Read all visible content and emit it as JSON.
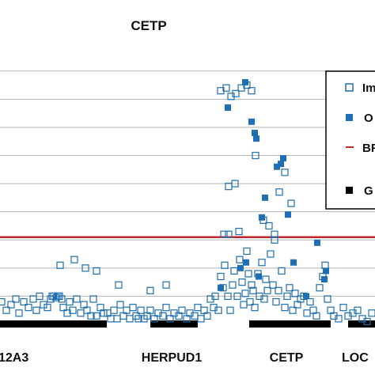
{
  "chart_data": {
    "type": "scatter",
    "title": "CETP",
    "xlabel": "",
    "ylabel": "",
    "ylim": [
      0,
      9.5
    ],
    "gridlines": [
      1,
      2,
      3,
      4,
      5,
      6,
      7,
      8,
      9
    ],
    "threshold": 3.1,
    "gene_labels": [
      "12A3",
      "HERPUD1",
      "CETP",
      "LOC"
    ],
    "gene_bars": [
      [
        0,
        135
      ],
      [
        190,
        250
      ],
      [
        315,
        418
      ],
      [
        440,
        474
      ]
    ],
    "legend": [
      "Im",
      "O",
      "BF",
      "G"
    ],
    "colors": {
      "marker": "#1e6fb4",
      "threshold": "#c1272d",
      "grid": "#b4b4b4",
      "gene": "#000000"
    },
    "series": [
      {
        "name": "Im",
        "marker": "open-square",
        "points": [
          [
            2,
            0.8
          ],
          [
            8,
            0.5
          ],
          [
            14,
            0.7
          ],
          [
            20,
            0.9
          ],
          [
            24,
            0.4
          ],
          [
            30,
            0.8
          ],
          [
            36,
            0.6
          ],
          [
            42,
            0.9
          ],
          [
            46,
            0.5
          ],
          [
            50,
            1.0
          ],
          [
            55,
            0.7
          ],
          [
            60,
            0.6
          ],
          [
            64,
            0.9
          ],
          [
            66,
            1.0
          ],
          [
            68,
            1.0
          ],
          [
            71,
            0.95
          ],
          [
            73,
            1.0
          ],
          [
            75,
            1.0
          ],
          [
            78,
            0.9
          ],
          [
            80,
            0.6
          ],
          [
            85,
            0.4
          ],
          [
            88,
            0.8
          ],
          [
            92,
            0.5
          ],
          [
            97,
            0.9
          ],
          [
            102,
            0.4
          ],
          [
            106,
            0.7
          ],
          [
            110,
            0.5
          ],
          [
            115,
            0.3
          ],
          [
            118,
            0.9
          ],
          [
            122,
            0.3
          ],
          [
            127,
            0.6
          ],
          [
            131,
            0.4
          ],
          [
            136,
            0.4
          ],
          [
            140,
            0.2
          ],
          [
            144,
            0.5
          ],
          [
            148,
            0.2
          ],
          [
            152,
            0.7
          ],
          [
            156,
            0.3
          ],
          [
            160,
            0.5
          ],
          [
            164,
            0.2
          ],
          [
            168,
            0.6
          ],
          [
            172,
            0.3
          ],
          [
            175,
            0.2
          ],
          [
            178,
            0.5
          ],
          [
            182,
            0.2
          ],
          [
            186,
            0.3
          ],
          [
            190,
            0.5
          ],
          [
            195,
            0.2
          ],
          [
            200,
            0.4
          ],
          [
            206,
            0.3
          ],
          [
            210,
            0.6
          ],
          [
            215,
            0.2
          ],
          [
            220,
            0.4
          ],
          [
            226,
            0.3
          ],
          [
            230,
            0.5
          ],
          [
            236,
            0.2
          ],
          [
            240,
            0.4
          ],
          [
            246,
            0.3
          ],
          [
            250,
            0.6
          ],
          [
            254,
            0.2
          ],
          [
            258,
            0.5
          ],
          [
            262,
            0.3
          ],
          [
            266,
            0.9
          ],
          [
            270,
            0.6
          ],
          [
            272,
            1.0
          ],
          [
            276,
            0.5
          ],
          [
            279,
            1.7
          ],
          [
            282,
            1.3
          ],
          [
            284,
            2.1
          ],
          [
            288,
            1.0
          ],
          [
            291,
            0.5
          ],
          [
            294,
            1.4
          ],
          [
            296,
            1.9
          ],
          [
            300,
            1.0
          ],
          [
            303,
            2.3
          ],
          [
            306,
            1.5
          ],
          [
            308,
            0.7
          ],
          [
            310,
            1.1
          ],
          [
            312,
            2.6
          ],
          [
            314,
            1.8
          ],
          [
            316,
            0.8
          ],
          [
            318,
            1.4
          ],
          [
            320,
            1.2
          ],
          [
            322,
            0.6
          ],
          [
            326,
            1.8
          ],
          [
            328,
            1.0
          ],
          [
            331,
            2.2
          ],
          [
            334,
            0.9
          ],
          [
            336,
            1.6
          ],
          [
            338,
            1.2
          ],
          [
            342,
            2.5
          ],
          [
            345,
            1.4
          ],
          [
            347,
            3.0
          ],
          [
            349,
            0.8
          ],
          [
            352,
            1.2
          ],
          [
            356,
            1.9
          ],
          [
            360,
            0.6
          ],
          [
            363,
            1.0
          ],
          [
            366,
            1.3
          ],
          [
            370,
            0.5
          ],
          [
            373,
            1.1
          ],
          [
            376,
            0.7
          ],
          [
            380,
            0.9
          ],
          [
            384,
            1.0
          ],
          [
            388,
            0.4
          ],
          [
            392,
            0.8
          ],
          [
            396,
            0.5
          ],
          [
            400,
            0.3
          ],
          [
            404,
            1.3
          ],
          [
            408,
            1.7
          ],
          [
            411,
            2.1
          ],
          [
            414,
            0.9
          ],
          [
            418,
            0.5
          ],
          [
            422,
            0.3
          ],
          [
            428,
            0.2
          ],
          [
            434,
            0.6
          ],
          [
            440,
            0.3
          ],
          [
            446,
            0.4
          ],
          [
            452,
            0.5
          ],
          [
            458,
            0.2
          ],
          [
            464,
            0.1
          ],
          [
            470,
            0.4
          ],
          [
            94,
            2.3
          ],
          [
            108,
            2.0
          ],
          [
            122,
            1.9
          ],
          [
            76,
            2.1
          ],
          [
            150,
            1.4
          ],
          [
            190,
            1.2
          ],
          [
            210,
            1.4
          ],
          [
            279,
            8.3
          ],
          [
            286,
            8.4
          ],
          [
            292,
            8.1
          ],
          [
            298,
            8.2
          ],
          [
            305,
            8.4
          ],
          [
            312,
            8.5
          ],
          [
            318,
            8.3
          ],
          [
            323,
            6.0
          ],
          [
            297,
            5.0
          ],
          [
            289,
            4.9
          ],
          [
            333,
            3.7
          ],
          [
            340,
            3.5
          ],
          [
            347,
            3.2
          ],
          [
            353,
            4.7
          ],
          [
            360,
            5.4
          ],
          [
            368,
            4.3
          ],
          [
            283,
            3.2
          ],
          [
            289,
            3.2
          ],
          [
            302,
            3.3
          ]
        ]
      },
      {
        "name": "O",
        "marker": "filled-square",
        "points": [
          [
            310,
            8.6
          ],
          [
            288,
            7.7
          ],
          [
            318,
            7.2
          ],
          [
            322,
            6.8
          ],
          [
            324,
            6.6
          ],
          [
            358,
            5.9
          ],
          [
            350,
            5.6
          ],
          [
            355,
            5.7
          ],
          [
            335,
            4.5
          ],
          [
            331,
            3.8
          ],
          [
            364,
            3.9
          ],
          [
            401,
            2.9
          ],
          [
            371,
            2.2
          ],
          [
            327,
            1.7
          ],
          [
            311,
            2.2
          ],
          [
            304,
            2.0
          ],
          [
            279,
            1.3
          ],
          [
            410,
            1.6
          ],
          [
            412,
            1.9
          ],
          [
            387,
            1.0
          ]
        ]
      }
    ]
  }
}
